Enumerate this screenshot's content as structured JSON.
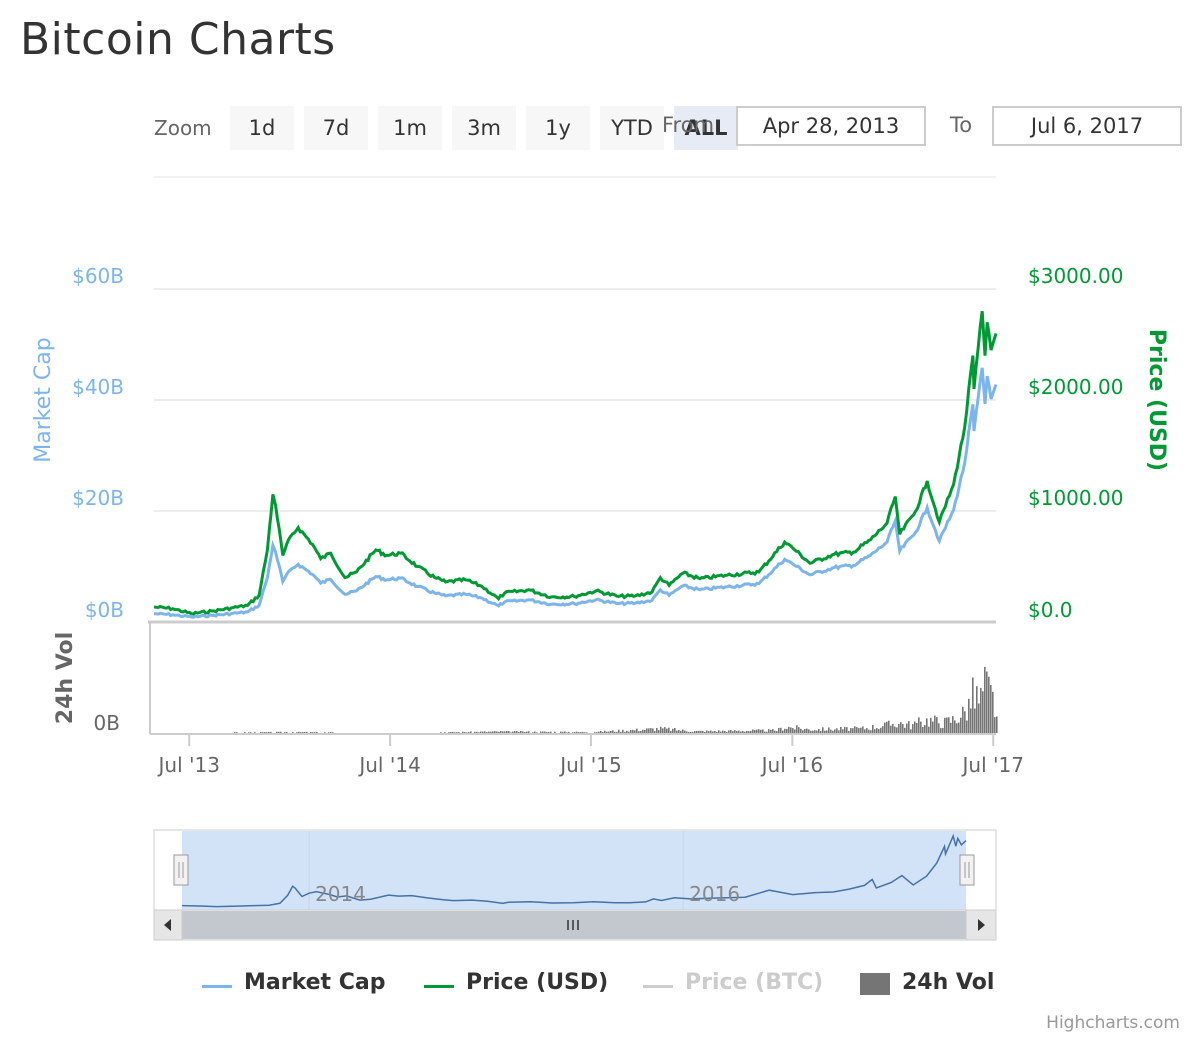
{
  "title": "Bitcoin Charts",
  "range_selector": {
    "zoom_label": "Zoom",
    "buttons": [
      "1d",
      "7d",
      "1m",
      "3m",
      "1y",
      "YTD",
      "ALL"
    ],
    "active_button": "ALL",
    "from_label": "From",
    "to_label": "To",
    "from_value": "Apr 28, 2013",
    "to_value": "Jul 6, 2017"
  },
  "legend": {
    "market_cap": "Market Cap",
    "price_usd": "Price (USD)",
    "price_btc": "Price (BTC)",
    "volume": "24h Vol"
  },
  "credits": "Highcharts.com",
  "colors": {
    "market_cap": "#7cb5ec",
    "price_usd": "#009933",
    "price_btc": "#cccccc",
    "volume": "#757575",
    "navigator_fill": "#d3e3f7"
  },
  "chart_data": {
    "type": "line",
    "x_range": [
      "2013-04-28",
      "2017-07-06"
    ],
    "x_ticks": [
      {
        "date": "2013-07-01",
        "label": "Jul '13"
      },
      {
        "date": "2014-07-01",
        "label": "Jul '14"
      },
      {
        "date": "2015-07-01",
        "label": "Jul '15"
      },
      {
        "date": "2016-07-01",
        "label": "Jul '16"
      },
      {
        "date": "2017-07-01",
        "label": "Jul '17"
      }
    ],
    "y_axis_left": {
      "title": "Market Cap",
      "ticks": [
        "$0B",
        "$20B",
        "$40B",
        "$60B"
      ],
      "min": 0,
      "max": 60
    },
    "y_axis_right": {
      "title": "Price (USD)",
      "ticks": [
        "$0.0",
        "$1000.00",
        "$2000.00",
        "$3000.00"
      ],
      "min": 0,
      "max": 3000
    },
    "volume_axis": {
      "title": "24h Vol",
      "ticks": [
        "0B"
      ]
    },
    "navigator_ticks": [
      {
        "date": "2014-01-01",
        "label": "2014"
      },
      {
        "date": "2016-01-01",
        "label": "2016"
      }
    ],
    "series": [
      {
        "name": "Price (USD)",
        "axis": "right",
        "points": [
          [
            "2013-04-28",
            135
          ],
          [
            "2013-06-01",
            120
          ],
          [
            "2013-07-05",
            75
          ],
          [
            "2013-08-15",
            100
          ],
          [
            "2013-09-15",
            125
          ],
          [
            "2013-10-15",
            150
          ],
          [
            "2013-11-05",
            240
          ],
          [
            "2013-11-20",
            650
          ],
          [
            "2013-11-30",
            1150
          ],
          [
            "2013-12-05",
            1050
          ],
          [
            "2013-12-18",
            600
          ],
          [
            "2014-01-01",
            770
          ],
          [
            "2014-01-15",
            850
          ],
          [
            "2014-02-10",
            700
          ],
          [
            "2014-02-25",
            570
          ],
          [
            "2014-03-15",
            620
          ],
          [
            "2014-04-10",
            400
          ],
          [
            "2014-05-01",
            450
          ],
          [
            "2014-06-05",
            650
          ],
          [
            "2014-06-25",
            600
          ],
          [
            "2014-07-20",
            620
          ],
          [
            "2014-08-20",
            500
          ],
          [
            "2014-09-20",
            400
          ],
          [
            "2014-10-10",
            360
          ],
          [
            "2014-11-15",
            380
          ],
          [
            "2014-12-15",
            320
          ],
          [
            "2015-01-14",
            210
          ],
          [
            "2015-01-25",
            260
          ],
          [
            "2015-03-10",
            290
          ],
          [
            "2015-04-20",
            225
          ],
          [
            "2015-06-01",
            230
          ],
          [
            "2015-07-10",
            280
          ],
          [
            "2015-08-20",
            230
          ],
          [
            "2015-09-20",
            235
          ],
          [
            "2015-10-20",
            270
          ],
          [
            "2015-11-04",
            400
          ],
          [
            "2015-11-20",
            330
          ],
          [
            "2015-12-15",
            440
          ],
          [
            "2016-01-15",
            390
          ],
          [
            "2016-03-01",
            420
          ],
          [
            "2016-05-01",
            450
          ],
          [
            "2016-06-17",
            720
          ],
          [
            "2016-07-01",
            670
          ],
          [
            "2016-08-02",
            530
          ],
          [
            "2016-09-15",
            610
          ],
          [
            "2016-10-20",
            630
          ],
          [
            "2016-11-20",
            740
          ],
          [
            "2016-12-20",
            890
          ],
          [
            "2017-01-04",
            1130
          ],
          [
            "2017-01-12",
            790
          ],
          [
            "2017-02-10",
            1000
          ],
          [
            "2017-03-03",
            1270
          ],
          [
            "2017-03-25",
            900
          ],
          [
            "2017-04-20",
            1240
          ],
          [
            "2017-05-10",
            1750
          ],
          [
            "2017-05-25",
            2400
          ],
          [
            "2017-05-27",
            2100
          ],
          [
            "2017-06-11",
            2800
          ],
          [
            "2017-06-16",
            2400
          ],
          [
            "2017-06-20",
            2700
          ],
          [
            "2017-06-27",
            2450
          ],
          [
            "2017-07-06",
            2600
          ]
        ]
      },
      {
        "name": "Market Cap",
        "axis": "left",
        "points": [
          [
            "2013-04-28",
            1.5
          ],
          [
            "2013-06-01",
            1.3
          ],
          [
            "2013-07-05",
            0.9
          ],
          [
            "2013-08-15",
            1.2
          ],
          [
            "2013-09-15",
            1.5
          ],
          [
            "2013-10-15",
            1.8
          ],
          [
            "2013-11-05",
            3.0
          ],
          [
            "2013-11-20",
            8.0
          ],
          [
            "2013-11-30",
            13.8
          ],
          [
            "2013-12-05",
            12.6
          ],
          [
            "2013-12-18",
            7.3
          ],
          [
            "2014-01-01",
            9.4
          ],
          [
            "2014-01-15",
            10.4
          ],
          [
            "2014-02-10",
            8.6
          ],
          [
            "2014-02-25",
            7.0
          ],
          [
            "2014-03-15",
            7.7
          ],
          [
            "2014-04-10",
            5.0
          ],
          [
            "2014-05-01",
            5.6
          ],
          [
            "2014-06-05",
            8.2
          ],
          [
            "2014-06-25",
            7.6
          ],
          [
            "2014-07-20",
            7.9
          ],
          [
            "2014-08-20",
            6.4
          ],
          [
            "2014-09-20",
            5.2
          ],
          [
            "2014-10-10",
            4.7
          ],
          [
            "2014-11-15",
            5.0
          ],
          [
            "2014-12-15",
            4.3
          ],
          [
            "2015-01-14",
            2.9
          ],
          [
            "2015-01-25",
            3.6
          ],
          [
            "2015-03-10",
            4.0
          ],
          [
            "2015-04-20",
            3.2
          ],
          [
            "2015-06-01",
            3.3
          ],
          [
            "2015-07-10",
            4.0
          ],
          [
            "2015-08-20",
            3.3
          ],
          [
            "2015-09-20",
            3.4
          ],
          [
            "2015-10-20",
            3.9
          ],
          [
            "2015-11-04",
            5.8
          ],
          [
            "2015-11-20",
            4.8
          ],
          [
            "2015-12-15",
            6.5
          ],
          [
            "2016-01-15",
            5.8
          ],
          [
            "2016-03-01",
            6.3
          ],
          [
            "2016-05-01",
            6.9
          ],
          [
            "2016-06-17",
            11.3
          ],
          [
            "2016-07-01",
            10.5
          ],
          [
            "2016-08-02",
            8.5
          ],
          [
            "2016-09-15",
            9.8
          ],
          [
            "2016-10-20",
            10.2
          ],
          [
            "2016-11-20",
            12.0
          ],
          [
            "2016-12-20",
            14.4
          ],
          [
            "2017-01-04",
            18.2
          ],
          [
            "2017-01-12",
            12.8
          ],
          [
            "2017-02-10",
            16.2
          ],
          [
            "2017-03-03",
            20.6
          ],
          [
            "2017-03-25",
            14.6
          ],
          [
            "2017-04-20",
            20.2
          ],
          [
            "2017-05-10",
            28.6
          ],
          [
            "2017-05-25",
            39.2
          ],
          [
            "2017-05-27",
            34.4
          ],
          [
            "2017-06-11",
            45.8
          ],
          [
            "2017-06-16",
            39.3
          ],
          [
            "2017-06-20",
            44.3
          ],
          [
            "2017-06-27",
            40.2
          ],
          [
            "2017-07-06",
            42.8
          ]
        ]
      },
      {
        "name": "24h Vol",
        "axis": "volume",
        "points": [
          [
            "2013-04-28",
            0.0
          ],
          [
            "2014-01-01",
            0.05
          ],
          [
            "2014-07-01",
            0.0
          ],
          [
            "2015-01-15",
            0.08
          ],
          [
            "2015-07-01",
            0.05
          ],
          [
            "2015-11-04",
            0.25
          ],
          [
            "2016-01-01",
            0.1
          ],
          [
            "2016-06-01",
            0.15
          ],
          [
            "2016-06-17",
            0.35
          ],
          [
            "2016-08-01",
            0.2
          ],
          [
            "2016-11-01",
            0.25
          ],
          [
            "2016-12-20",
            0.45
          ],
          [
            "2017-01-05",
            0.6
          ],
          [
            "2017-02-01",
            0.45
          ],
          [
            "2017-03-03",
            0.75
          ],
          [
            "2017-04-01",
            0.6
          ],
          [
            "2017-04-20",
            0.8
          ],
          [
            "2017-05-10",
            1.2
          ],
          [
            "2017-05-25",
            2.2
          ],
          [
            "2017-06-05",
            1.8
          ],
          [
            "2017-06-11",
            2.4
          ],
          [
            "2017-06-16",
            2.8
          ],
          [
            "2017-06-22",
            2.3
          ],
          [
            "2017-06-28",
            2.0
          ],
          [
            "2017-07-06",
            1.0
          ]
        ]
      }
    ]
  }
}
